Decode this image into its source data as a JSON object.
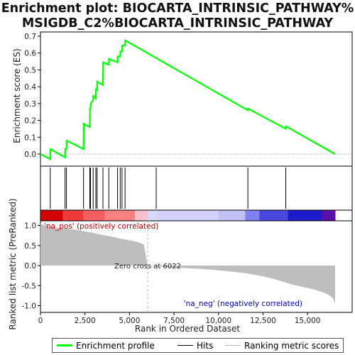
{
  "title_line1": "Enrichment plot: BIOCARTA_INTRINSIC_PATHWAY%",
  "title_line2": "MSIGDB_C2%BIOCARTA_INTRINSIC_PATHWAY",
  "colors": {
    "profile": "#00ff00",
    "hits": "#000000",
    "metric_fill": "#bebebe",
    "zero_cross_line": "#b4b4b4"
  },
  "chart_data": {
    "type": "line",
    "top_panel": {
      "ylabel": "Enrichment score (ES)",
      "yticks": [
        0.0,
        0.1,
        0.2,
        0.3,
        0.4,
        0.5,
        0.6,
        0.7
      ],
      "ytick_labels": [
        "0.0",
        "0.1",
        "0.2",
        "0.3",
        "0.4",
        "0.5",
        "0.6",
        "0.7"
      ],
      "ylim": [
        -0.05,
        0.71
      ],
      "series": [
        {
          "name": "Enrichment profile",
          "x": [
            0,
            550,
            560,
            1380,
            1390,
            1460,
            1470,
            2420,
            2430,
            2770,
            2780,
            2810,
            2820,
            2960,
            2970,
            3110,
            3120,
            3180,
            3190,
            3510,
            3520,
            3840,
            3850,
            4330,
            4340,
            4480,
            4490,
            4580,
            4590,
            4750,
            4760,
            11650,
            11660,
            13780,
            13790,
            16550
          ],
          "y": [
            0.0,
            -0.03,
            0.03,
            -0.02,
            0.03,
            0.03,
            0.08,
            0.03,
            0.18,
            0.16,
            0.27,
            0.27,
            0.3,
            0.32,
            0.345,
            0.33,
            0.385,
            0.38,
            0.43,
            0.41,
            0.545,
            0.53,
            0.565,
            0.545,
            0.58,
            0.58,
            0.61,
            0.61,
            0.645,
            0.645,
            0.675,
            0.26,
            0.27,
            0.15,
            0.165,
            0.0
          ]
        }
      ]
    },
    "hits": {
      "name": "Hits",
      "x": [
        550,
        1380,
        1460,
        2420,
        2770,
        2810,
        2960,
        3110,
        3180,
        3510,
        3840,
        4330,
        4480,
        4580,
        4750,
        6500,
        11650,
        13780
      ]
    },
    "bottom_panel": {
      "xlabel": "Rank in Ordered Dataset",
      "ylabel": "Ranked list metric (PreRanked)",
      "xticks": [
        0,
        2500,
        5000,
        7500,
        10000,
        12500,
        15000
      ],
      "xtick_labels": [
        "0",
        "2,500",
        "5,000",
        "7,500",
        "10,000",
        "12,500",
        "15,000"
      ],
      "yticks": [
        -1.0,
        -0.5,
        0.0,
        0.5,
        1.0
      ],
      "ytick_labels": [
        "-1.0",
        "-0.5",
        "0.0",
        "0.5",
        "1.0"
      ],
      "ylim": [
        -1.06,
        1.1
      ],
      "xlim": [
        0,
        16550
      ],
      "metric": {
        "name": "Ranking metric scores",
        "x": [
          0,
          200,
          500,
          1000,
          1500,
          2000,
          2500,
          3000,
          3500,
          4000,
          4500,
          5000,
          5500,
          5800,
          6022,
          6500,
          7500,
          8500,
          9500,
          10500,
          11500,
          12200,
          12800,
          13300,
          13800,
          14300,
          14800,
          15300,
          15700,
          16000,
          16250,
          16400,
          16500,
          16550
        ],
        "y": [
          1.05,
          1.0,
          0.97,
          0.94,
          0.92,
          0.89,
          0.85,
          0.81,
          0.76,
          0.72,
          0.67,
          0.63,
          0.58,
          0.53,
          0.0,
          -0.02,
          -0.05,
          -0.07,
          -0.1,
          -0.14,
          -0.19,
          -0.24,
          -0.3,
          -0.36,
          -0.43,
          -0.49,
          -0.54,
          -0.59,
          -0.64,
          -0.69,
          -0.75,
          -0.8,
          -0.87,
          -0.97
        ]
      },
      "zero_cross": 6022,
      "zero_cross_label": "Zero cross at 6022",
      "pos_label": "'na_pos' (positively correlated)",
      "neg_label": "'na_neg' (negatively correlated)"
    },
    "x_max": 16550,
    "legend_entries": [
      "Enrichment profile",
      "Hits",
      "Ranking metric scores"
    ],
    "legend_placement": "bottom",
    "grid": false
  }
}
